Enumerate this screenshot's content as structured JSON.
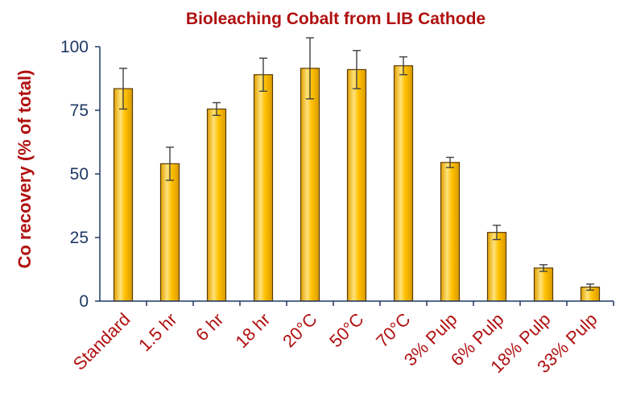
{
  "chart_data": {
    "type": "bar",
    "title": "Bioleaching Cobalt from LIB Cathode",
    "xlabel": "",
    "ylabel": "Co recovery (% of total)",
    "ylim": [
      0,
      100
    ],
    "yticks": [
      0,
      25,
      50,
      75,
      100
    ],
    "grid": false,
    "legend": false,
    "categories": [
      "Standard",
      "1.5 hr",
      "6 hr",
      "18 hr",
      "20°C",
      "50°C",
      "70°C",
      "3% Pulp",
      "6% Pulp",
      "18% Pulp",
      "33% Pulp"
    ],
    "values": [
      83.5,
      54,
      75.5,
      89,
      91.5,
      91,
      92.5,
      54.5,
      27,
      13,
      5.5
    ],
    "error": [
      8,
      6.5,
      2.5,
      6.5,
      12,
      7.5,
      3.5,
      2,
      2.8,
      1.3,
      1.2
    ],
    "colors": {
      "bar_fill": "#ffc000",
      "bar_edge": "#5a3a00",
      "title": "#b01010",
      "axis": "#1f3864"
    }
  }
}
